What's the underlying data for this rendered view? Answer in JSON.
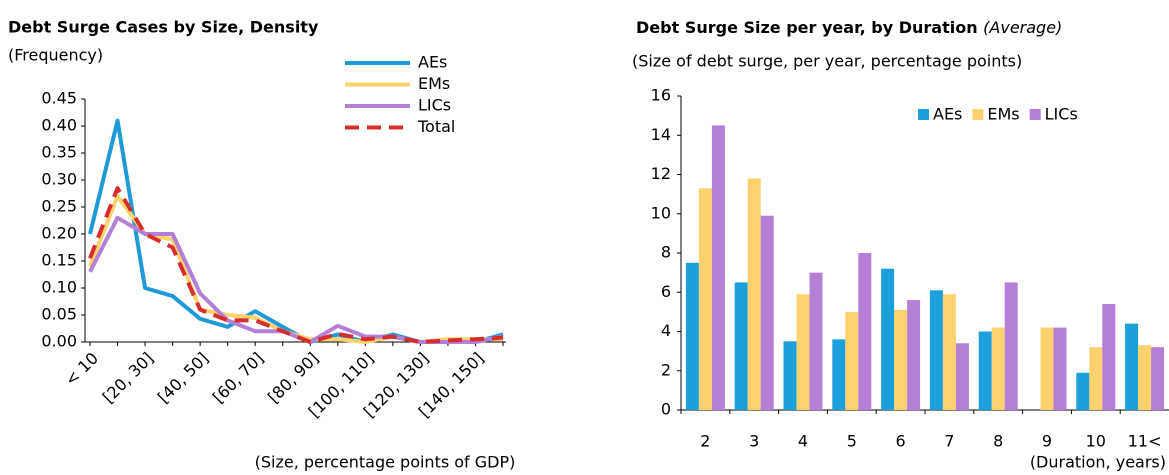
{
  "chart_data": [
    {
      "type": "line",
      "title": "Debt Surge Cases by Size, Density",
      "subtitle": "(Frequency)",
      "xlabel": "(Size, percentage points of GDP)",
      "categories": [
        "< 10",
        null,
        "[20, 30]",
        null,
        "[40, 50]",
        null,
        "[60, 70]",
        null,
        "[80, 90]",
        null,
        "[100, 110]",
        null,
        "[120, 130]",
        null,
        "[140, 150]",
        null
      ],
      "series": [
        {
          "name": "AEs",
          "color": "#1e9bd7",
          "values": [
            0.2,
            0.41,
            0.1,
            0.085,
            0.043,
            0.028,
            0.057,
            0.028,
            0.0,
            0.014,
            0.0,
            0.014,
            0.0,
            0.0,
            0.0,
            0.014
          ]
        },
        {
          "name": "EMs",
          "color": "#ffd36b",
          "values": [
            0.14,
            0.27,
            0.2,
            0.19,
            0.06,
            0.05,
            0.045,
            0.02,
            0.005,
            0.005,
            0.0,
            0.01,
            0.0,
            0.005,
            0.005,
            0.005
          ]
        },
        {
          "name": "LICs",
          "color": "#b47fd6",
          "values": [
            0.13,
            0.23,
            0.2,
            0.2,
            0.09,
            0.04,
            0.02,
            0.02,
            0.0,
            0.03,
            0.01,
            0.01,
            0.0,
            0.0,
            0.0,
            0.01
          ]
        },
        {
          "name": "Total",
          "color": "#d62d2d",
          "dashed": true,
          "values": [
            0.155,
            0.285,
            0.2,
            0.175,
            0.06,
            0.04,
            0.04,
            0.02,
            0.0,
            0.015,
            0.005,
            0.01,
            0.0,
            0.003,
            0.005,
            0.008
          ]
        }
      ],
      "ylim": [
        0,
        0.45
      ],
      "yticks": [
        {
          "value": 0,
          "label": "0.00"
        },
        0.05,
        {
          "value": 0.1,
          "label": "0.10"
        },
        0.15,
        {
          "value": 0.2,
          "label": "0.20"
        },
        0.25,
        {
          "value": 0.3,
          "label": "0.30"
        },
        0.35,
        {
          "value": 0.4,
          "label": "0.40"
        },
        0.45
      ],
      "legend": "upper-right"
    },
    {
      "type": "bar",
      "title": "Debt Surge Size per year, by Duration",
      "title_suffix": "(Average)",
      "subtitle": "(Size of debt surge, per year, percentage points)",
      "xlabel": "(Duration, years)",
      "categories": [
        "2",
        "3",
        "4",
        "5",
        "6",
        "7",
        "8",
        "9",
        "10",
        "11<"
      ],
      "series": [
        {
          "name": "AEs",
          "color": "#1ca0dc",
          "values": [
            7.5,
            6.5,
            3.5,
            3.6,
            7.2,
            6.1,
            4.0,
            null,
            1.9,
            4.4
          ]
        },
        {
          "name": "EMs",
          "color": "#fdd26e",
          "values": [
            11.3,
            11.8,
            5.9,
            5.0,
            5.1,
            5.9,
            4.2,
            4.2,
            3.2,
            3.3
          ]
        },
        {
          "name": "LICs",
          "color": "#b57ed7",
          "values": [
            14.5,
            9.9,
            7.0,
            8.0,
            5.6,
            3.4,
            6.5,
            4.2,
            5.4,
            3.2
          ]
        }
      ],
      "ylim": [
        0,
        16
      ],
      "yticks": [
        0,
        2,
        4,
        6,
        8,
        10,
        12,
        14,
        16
      ],
      "legend": "upper-right"
    }
  ]
}
